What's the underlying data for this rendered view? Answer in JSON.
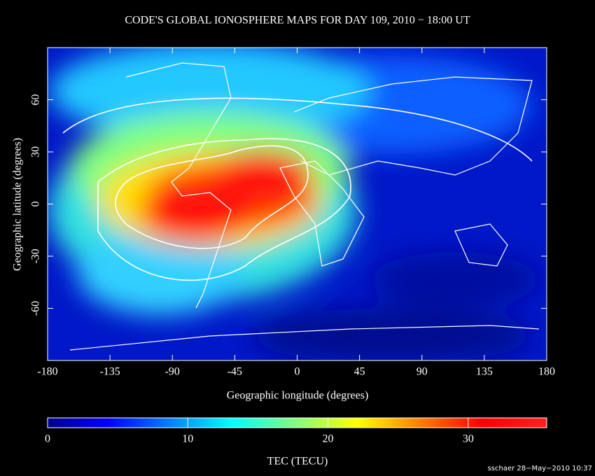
{
  "title": "CODE'S GLOBAL IONOSPHERE MAPS FOR DAY 109, 2010 − 18:00 UT",
  "map": {
    "x_axis": {
      "label": "Geographic longitude (degrees)",
      "lim": [
        -180,
        180
      ],
      "ticks": [
        -180,
        -135,
        -90,
        -45,
        0,
        45,
        90,
        135,
        180
      ]
    },
    "y_axis": {
      "label": "Geographic latitude (degrees)",
      "lim": [
        -90,
        90
      ],
      "ticks": [
        -60,
        -30,
        0,
        30,
        60
      ]
    }
  },
  "colorbar": {
    "label": "TEC (TECU)",
    "lim": [
      0,
      35.6
    ],
    "ticks": [
      0,
      10,
      20,
      30
    ]
  },
  "footer": "sschaer 28−May−2010 10:37"
}
